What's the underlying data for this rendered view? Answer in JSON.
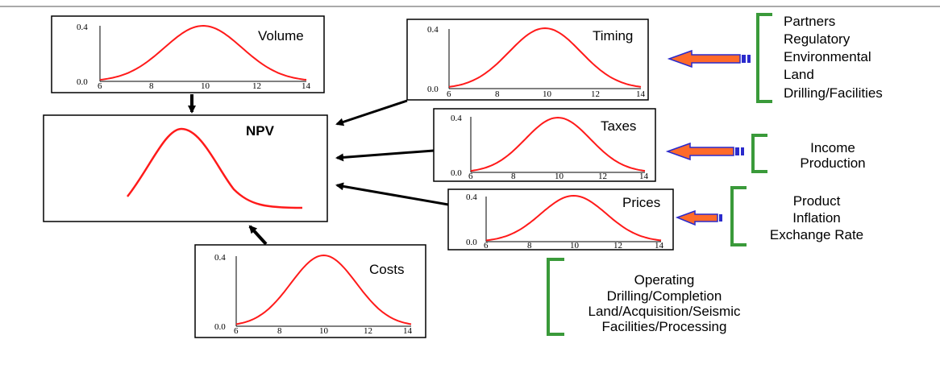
{
  "colors": {
    "curve": "#ff1a1a",
    "bracket": "#3a9a3a",
    "arrow_fill": "#ff6a2a",
    "arrow_stroke": "#2a2acc",
    "line": "#000000"
  },
  "npv": {
    "label": "NPV"
  },
  "plots": {
    "volume": {
      "label": "Volume",
      "y_top": "0.4",
      "y_bottom": "0.0",
      "x_ticks": [
        "6",
        "8",
        "10",
        "12",
        "14"
      ]
    },
    "timing": {
      "label": "Timing",
      "y_top": "0.4",
      "y_bottom": "0.0",
      "x_ticks": [
        "6",
        "8",
        "10",
        "12",
        "14"
      ]
    },
    "taxes": {
      "label": "Taxes",
      "y_top": "0.4",
      "y_bottom": "0.0",
      "x_ticks": [
        "6",
        "8",
        "10",
        "12",
        "14"
      ]
    },
    "prices": {
      "label": "Prices",
      "y_top": "0.4",
      "y_bottom": "0.0",
      "x_ticks": [
        "6",
        "8",
        "10",
        "12",
        "14"
      ]
    },
    "costs": {
      "label": "Costs",
      "y_top": "0.4",
      "y_bottom": "0.0",
      "x_ticks": [
        "6",
        "8",
        "10",
        "12",
        "14"
      ]
    }
  },
  "brackets": {
    "timing_factors": [
      "Partners",
      "Regulatory",
      "Environmental",
      "Land",
      "Drilling/Facilities"
    ],
    "tax_factors": [
      "Income",
      "Production"
    ],
    "price_factors": [
      "Product",
      "Inflation",
      "Exchange Rate"
    ],
    "cost_factors": [
      "Operating",
      "Drilling/Completion",
      "Land/Acquisition/Seismic",
      "Facilities/Processing"
    ]
  }
}
